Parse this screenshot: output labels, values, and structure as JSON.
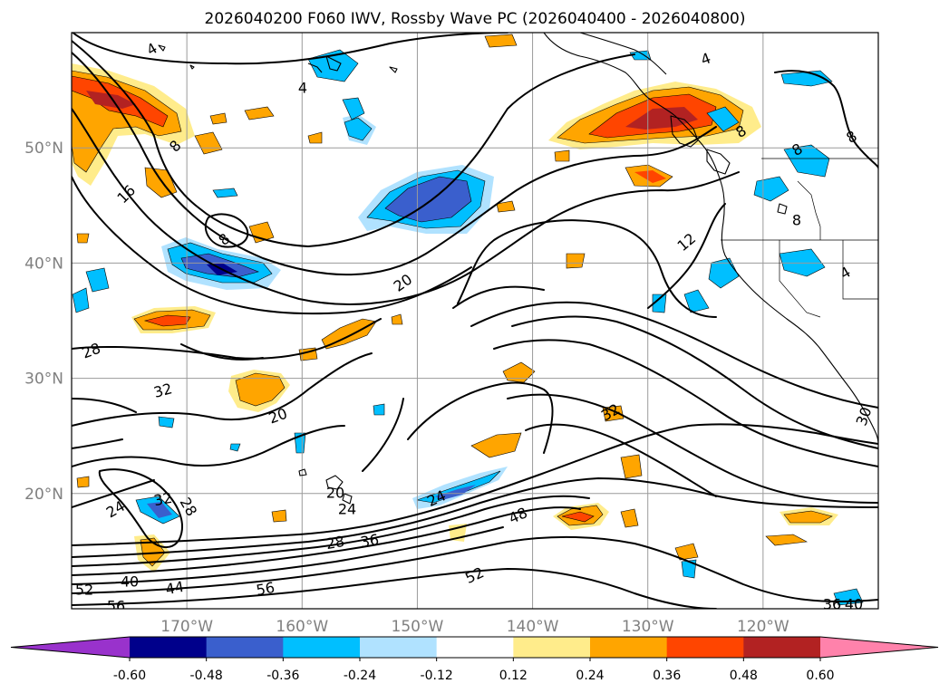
{
  "title": "2026040200 F060 IWV, Rossby Wave PC (2026040400 - 2026040800)",
  "map": {
    "lon_range": [
      -180,
      -110
    ],
    "lat_range": [
      10,
      60
    ],
    "lat_labels": [
      {
        "text": "50°N",
        "lat": 50
      },
      {
        "text": "40°N",
        "lat": 40
      },
      {
        "text": "30°N",
        "lat": 30
      },
      {
        "text": "20°N",
        "lat": 20
      }
    ],
    "lon_labels": [
      {
        "text": "170°W",
        "lon": -170
      },
      {
        "text": "160°W",
        "lon": -160
      },
      {
        "text": "150°W",
        "lon": -150
      },
      {
        "text": "140°W",
        "lon": -140
      },
      {
        "text": "130°W",
        "lon": -130
      },
      {
        "text": "120°W",
        "lon": -120
      }
    ],
    "gridlines": true,
    "contour_labels": [
      "4",
      "8",
      "16",
      "8",
      "28",
      "32",
      "20",
      "20",
      "12",
      "24",
      "32",
      "28",
      "20",
      "24",
      "24",
      "28",
      "36",
      "40",
      "44",
      "48",
      "52",
      "52",
      "56",
      "56",
      "36",
      "40",
      "8",
      "8",
      "4",
      "4",
      "4",
      "8",
      "8",
      "32",
      "30"
    ]
  },
  "colorbar": {
    "ticks": [
      "-0.60",
      "-0.48",
      "-0.36",
      "-0.24",
      "-0.12",
      "0.12",
      "0.24",
      "0.36",
      "0.48",
      "0.60"
    ],
    "colors": [
      "#9932cc",
      "#00008b",
      "#3a5fcd",
      "#00bfff",
      "#b0e2ff",
      "#ffffff",
      "#ffec8b",
      "#ffa500",
      "#ff4500",
      "#b22222",
      "#ff82ab"
    ],
    "extend": "both"
  }
}
